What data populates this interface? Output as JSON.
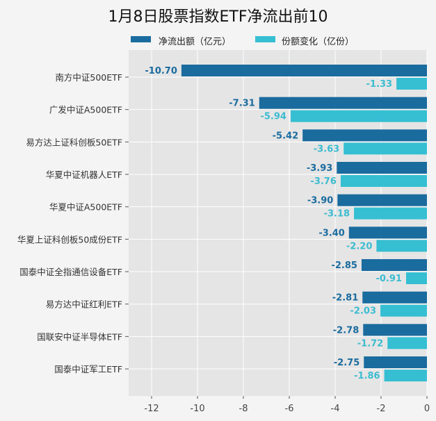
{
  "chart_data": {
    "type": "bar",
    "orientation": "horizontal",
    "title": "1月8日股票指数ETF净流出前10",
    "categories": [
      "南方中证500ETF",
      "广发中证A500ETF",
      "易方达上证科创板50ETF",
      "华夏中证机器人ETF",
      "华夏中证A500ETF",
      "华夏上证科创板50成份ETF",
      "国泰中证全指通信设备ETF",
      "易方达中证红利ETF",
      "国联安中证半导体ETF",
      "国泰中证军工ETF"
    ],
    "series": [
      {
        "name": "净流出额（亿元）",
        "color": "#1a6c9e",
        "label_color": "#1a6c9e",
        "values": [
          -10.7,
          -7.31,
          -5.42,
          -3.93,
          -3.9,
          -3.4,
          -2.85,
          -2.81,
          -2.78,
          -2.75
        ]
      },
      {
        "name": "份额变化（亿份）",
        "color": "#36bfd3",
        "label_color": "#3bbcd0",
        "values": [
          -1.33,
          -5.94,
          -3.63,
          -3.76,
          -3.18,
          -2.2,
          -0.91,
          -2.03,
          -1.72,
          -1.86
        ]
      }
    ],
    "xlim": [
      -13,
      0
    ],
    "xticks": [
      -12,
      -10,
      -8,
      -6,
      -4,
      -2,
      0
    ],
    "grid": true,
    "legend": "top",
    "plot_bg": "#e5e5e5"
  }
}
